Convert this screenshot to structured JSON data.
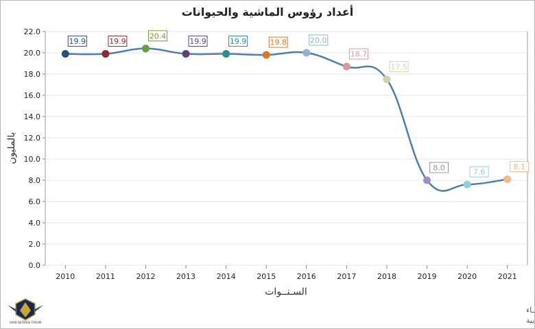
{
  "chart_data": {
    "type": "line",
    "title": "أعداد رؤوس الماشية والحيوانات",
    "xlabel": "السـنــوات",
    "ylabel": "بالمليون",
    "x": [
      "2010",
      "2011",
      "2012",
      "2013",
      "2014",
      "2015",
      "2016",
      "2017",
      "2018",
      "2019",
      "2020",
      "2021"
    ],
    "series": [
      {
        "values": [
          19.9,
          19.9,
          20.4,
          19.9,
          19.9,
          19.8,
          20.0,
          18.7,
          17.5,
          8.0,
          7.6,
          8.1
        ],
        "labels": [
          "19.9",
          "19.9",
          "20.4",
          "19.9",
          "19.9",
          "19.8",
          "20.0",
          "18.7",
          "17.5",
          "8.0",
          "7.6",
          "8.1"
        ],
        "line_color": "#4f7fa8",
        "point_colors": [
          "#2b4f78",
          "#8a2a2a",
          "#6f9a3a",
          "#5e3f7a",
          "#2e8c9a",
          "#d9791f",
          "#8fb0d6",
          "#d89a9a",
          "#c9d6a6",
          "#a48cc4",
          "#8fd0dc",
          "#f0b987"
        ]
      }
    ],
    "yticks": [
      "0.0",
      "2.0",
      "4.0",
      "6.0",
      "8.0",
      "10.0",
      "12.0",
      "14.0",
      "16.0",
      "18.0",
      "20.0",
      "22.0"
    ],
    "ylim": [
      0,
      22
    ],
    "grid": true,
    "legend": "none"
  },
  "footer": {
    "line1": "حقوق الملكية للجهــاز المركزي للتعبئة العــامة والأحصـــاء",
    "line2": "المصدر الأساسي للأحصاءات الرسمية لجمهورية مصر العربية"
  },
  "watermark": {
    "text": "ARAB DEFENSE FORUM"
  }
}
